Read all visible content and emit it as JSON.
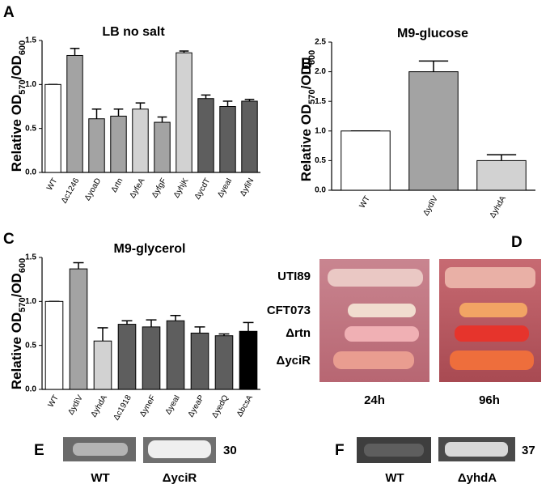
{
  "chart_data": [
    {
      "type": "bar",
      "panel": "A",
      "title": "LB no salt",
      "ylabel": [
        "Relative OD",
        "570",
        "/OD",
        "600"
      ],
      "categories": [
        "WT",
        "Δc1246",
        "ΔyoaD",
        "Δrtn",
        "ΔyfeA",
        "ΔyfgF",
        "ΔyhjK",
        "ΔycdT",
        "ΔyeaI",
        "ΔyfiN"
      ],
      "values": [
        1.0,
        1.33,
        0.61,
        0.64,
        0.72,
        0.57,
        1.36,
        0.84,
        0.75,
        0.81
      ],
      "errors": [
        0,
        0.08,
        0.11,
        0.08,
        0.07,
        0.06,
        0.02,
        0.04,
        0.06,
        0.02
      ],
      "colors": [
        "#ffffff",
        "#a3a3a3",
        "#a3a3a3",
        "#a3a3a3",
        "#d2d2d2",
        "#a3a3a3",
        "#d2d2d2",
        "#5e5e5e",
        "#5e5e5e",
        "#5e5e5e"
      ],
      "ylim": [
        0,
        1.5
      ],
      "yticks": [
        {
          "value": 0,
          "label": "0.0"
        },
        {
          "value": 0.5,
          "label": "0.5"
        },
        {
          "value": 1,
          "label": "1.0"
        },
        {
          "value": 1.5,
          "label": "1.5"
        }
      ]
    },
    {
      "type": "bar",
      "panel": "B",
      "title": "M9-glucose",
      "ylabel": [
        "Relative OD",
        "570",
        "/OD",
        "600"
      ],
      "categories": [
        "WT",
        "ΔydiV",
        "ΔyhdA"
      ],
      "values": [
        1.0,
        2.0,
        0.5
      ],
      "errors": [
        0,
        0.18,
        0.1
      ],
      "colors": [
        "#ffffff",
        "#a3a3a3",
        "#d2d2d2"
      ],
      "ylim": [
        0,
        2.5
      ],
      "yticks": [
        {
          "value": 0,
          "label": "0.0"
        },
        {
          "value": 0.5,
          "label": "0.5"
        },
        {
          "value": 1,
          "label": "1.0"
        },
        {
          "value": 1.5,
          "label": "1.5"
        },
        {
          "value": 2,
          "label": "2.0"
        },
        {
          "value": 2.5,
          "label": "2.5"
        }
      ]
    },
    {
      "type": "bar",
      "panel": "C",
      "title": "M9-glycerol",
      "ylabel": [
        "Relative OD",
        "570",
        "/OD",
        "600"
      ],
      "categories": [
        "WT",
        "ΔydiV",
        "ΔyhdA",
        "Δc1918",
        "ΔyneF",
        "ΔyeaI",
        "ΔyeaP",
        "ΔyedQ",
        "ΔbcsA"
      ],
      "values": [
        1.0,
        1.37,
        0.55,
        0.74,
        0.71,
        0.78,
        0.64,
        0.61,
        0.66
      ],
      "errors": [
        0,
        0.07,
        0.15,
        0.04,
        0.08,
        0.06,
        0.07,
        0.02,
        0.1
      ],
      "colors": [
        "#ffffff",
        "#a3a3a3",
        "#d2d2d2",
        "#5e5e5e",
        "#5e5e5e",
        "#5e5e5e",
        "#5e5e5e",
        "#5e5e5e",
        "#000000"
      ],
      "ylim": [
        0,
        1.5
      ],
      "yticks": [
        {
          "value": 0,
          "label": "0.0"
        },
        {
          "value": 0.5,
          "label": "0.5"
        },
        {
          "value": 1,
          "label": "1.0"
        },
        {
          "value": 1.5,
          "label": "1.5"
        }
      ]
    }
  ],
  "panel_d": {
    "letter": "D",
    "rows": [
      "UTI89",
      "CFT073",
      "Δrtn",
      "ΔyciR"
    ],
    "columns": [
      "24h",
      "96h"
    ]
  },
  "panel_e": {
    "letter": "E",
    "labels": [
      "WT",
      "ΔyciR"
    ],
    "temperature": "30"
  },
  "panel_f": {
    "letter": "F",
    "labels": [
      "WT",
      "ΔyhdA"
    ],
    "temperature": "37"
  }
}
